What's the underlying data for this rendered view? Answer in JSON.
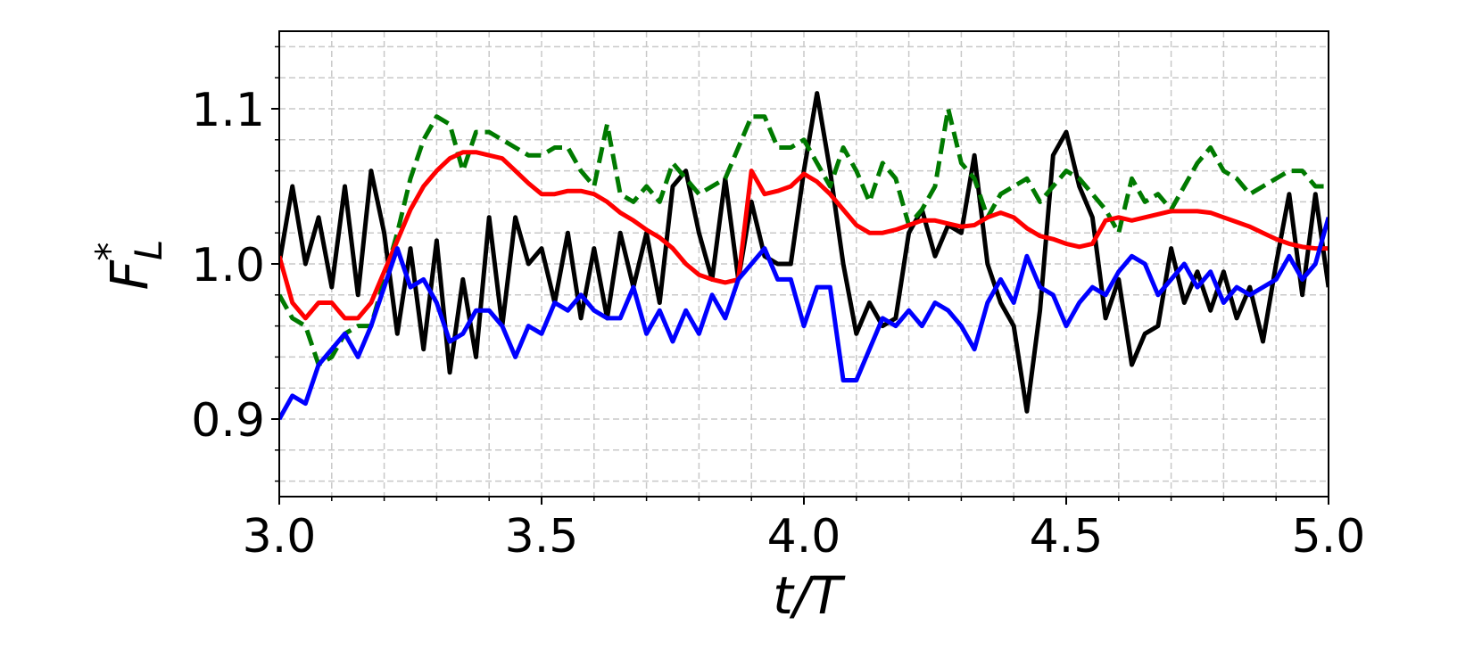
{
  "chart_data": {
    "type": "line",
    "xlabel": "t/T",
    "ylabel": {
      "base": "F",
      "sub": "L",
      "sup": "*"
    },
    "x": [
      3,
      3.025,
      3.05,
      3.075,
      3.1,
      3.125,
      3.15,
      3.175,
      3.2,
      3.225,
      3.25,
      3.275,
      3.3,
      3.325,
      3.35,
      3.375,
      3.4,
      3.425,
      3.45,
      3.475,
      3.5,
      3.525,
      3.55,
      3.575,
      3.6,
      3.625,
      3.65,
      3.675,
      3.7,
      3.725,
      3.75,
      3.775,
      3.8,
      3.825,
      3.85,
      3.875,
      3.9,
      3.925,
      3.95,
      3.975,
      4,
      4.025,
      4.05,
      4.075,
      4.1,
      4.125,
      4.15,
      4.175,
      4.2,
      4.225,
      4.25,
      4.275,
      4.3,
      4.325,
      4.35,
      4.375,
      4.4,
      4.425,
      4.45,
      4.475,
      4.5,
      4.525,
      4.55,
      4.575,
      4.6,
      4.625,
      4.65,
      4.675,
      4.7,
      4.725,
      4.75,
      4.775,
      4.8,
      4.825,
      4.85,
      4.875,
      4.9,
      4.925,
      4.95,
      4.975,
      5
    ],
    "series": [
      {
        "color": "#000000",
        "linestyle": "solid",
        "values": [
          1.0,
          1.05,
          1.0,
          1.03,
          0.985,
          1.05,
          0.98,
          1.06,
          1.02,
          0.955,
          1.01,
          0.945,
          1.015,
          0.93,
          0.99,
          0.94,
          1.03,
          0.96,
          1.03,
          1.0,
          1.01,
          0.975,
          1.02,
          0.965,
          1.01,
          0.965,
          1.02,
          0.985,
          1.02,
          0.975,
          1.05,
          1.06,
          1.02,
          0.99,
          1.055,
          0.99,
          1.04,
          1.005,
          1.0,
          1.0,
          1.06,
          1.11,
          1.06,
          1.0,
          0.955,
          0.975,
          0.96,
          0.965,
          1.02,
          1.035,
          1.005,
          1.025,
          1.02,
          1.07,
          1.0,
          0.975,
          0.96,
          0.905,
          0.97,
          1.07,
          1.085,
          1.05,
          1.03,
          0.965,
          0.99,
          0.935,
          0.955,
          0.96,
          1.01,
          0.975,
          0.995,
          0.97,
          0.995,
          0.965,
          0.985,
          0.95,
          1.0,
          1.045,
          0.98,
          1.045,
          0.985
        ]
      },
      {
        "color": "#007a00",
        "linestyle": "dashed",
        "values": [
          0.98,
          0.965,
          0.96,
          0.935,
          0.94,
          0.955,
          0.96,
          0.96,
          0.99,
          1.02,
          1.055,
          1.08,
          1.095,
          1.09,
          1.06,
          1.085,
          1.085,
          1.08,
          1.075,
          1.07,
          1.07,
          1.075,
          1.075,
          1.06,
          1.05,
          1.09,
          1.045,
          1.04,
          1.05,
          1.04,
          1.065,
          1.055,
          1.045,
          1.05,
          1.055,
          1.075,
          1.095,
          1.095,
          1.075,
          1.075,
          1.08,
          1.065,
          1.05,
          1.075,
          1.06,
          1.04,
          1.065,
          1.055,
          1.025,
          1.035,
          1.05,
          1.1,
          1.065,
          1.055,
          1.03,
          1.045,
          1.05,
          1.055,
          1.04,
          1.05,
          1.06,
          1.055,
          1.045,
          1.035,
          1.02,
          1.055,
          1.04,
          1.045,
          1.035,
          1.05,
          1.065,
          1.075,
          1.06,
          1.055,
          1.045,
          1.05,
          1.055,
          1.06,
          1.06,
          1.05,
          1.05
        ]
      },
      {
        "color": "#ff0000",
        "linestyle": "solid",
        "values": [
          1.005,
          0.975,
          0.965,
          0.975,
          0.975,
          0.965,
          0.965,
          0.975,
          0.995,
          1.015,
          1.035,
          1.05,
          1.06,
          1.068,
          1.072,
          1.072,
          1.07,
          1.068,
          1.06,
          1.052,
          1.045,
          1.045,
          1.047,
          1.047,
          1.045,
          1.04,
          1.033,
          1.028,
          1.022,
          1.017,
          1.01,
          1.0,
          0.993,
          0.99,
          0.988,
          0.99,
          1.06,
          1.045,
          1.047,
          1.05,
          1.058,
          1.053,
          1.045,
          1.035,
          1.025,
          1.02,
          1.02,
          1.022,
          1.025,
          1.028,
          1.028,
          1.026,
          1.024,
          1.025,
          1.03,
          1.033,
          1.03,
          1.023,
          1.018,
          1.016,
          1.013,
          1.011,
          1.013,
          1.028,
          1.03,
          1.028,
          1.03,
          1.032,
          1.034,
          1.034,
          1.034,
          1.033,
          1.03,
          1.027,
          1.024,
          1.02,
          1.016,
          1.013,
          1.011,
          1.01,
          1.01
        ]
      },
      {
        "color": "#0000ff",
        "linestyle": "solid",
        "values": [
          0.9,
          0.915,
          0.91,
          0.935,
          0.945,
          0.955,
          0.94,
          0.96,
          0.985,
          1.01,
          0.985,
          0.99,
          0.975,
          0.95,
          0.955,
          0.97,
          0.97,
          0.96,
          0.94,
          0.96,
          0.955,
          0.975,
          0.97,
          0.98,
          0.97,
          0.965,
          0.965,
          0.985,
          0.955,
          0.97,
          0.95,
          0.97,
          0.955,
          0.98,
          0.965,
          0.99,
          1.0,
          1.01,
          0.99,
          0.99,
          0.96,
          0.985,
          0.985,
          0.925,
          0.925,
          0.945,
          0.965,
          0.96,
          0.97,
          0.96,
          0.975,
          0.97,
          0.96,
          0.945,
          0.975,
          0.99,
          0.975,
          1.005,
          0.985,
          0.98,
          0.96,
          0.975,
          0.985,
          0.98,
          0.995,
          1.005,
          1.0,
          0.98,
          0.99,
          1.0,
          0.985,
          0.995,
          0.975,
          0.985,
          0.98,
          0.985,
          0.99,
          1.005,
          0.99,
          1.0,
          1.03
        ]
      }
    ],
    "xlim": [
      3,
      5
    ],
    "ylim": [
      0.85,
      1.15
    ],
    "xticks": [
      {
        "value": 3,
        "label": "3.0"
      },
      3.5,
      {
        "value": 4,
        "label": "4.0"
      },
      4.5,
      {
        "value": 5,
        "label": "5.0"
      }
    ],
    "yticks": [
      0.9,
      {
        "value": 1,
        "label": "1.0"
      },
      1.1
    ],
    "xticks_minor": [
      3.1,
      3.2,
      3.3,
      3.4,
      3.6,
      3.7,
      3.8,
      3.9,
      4.1,
      4.2,
      4.3,
      4.4,
      4.6,
      4.7,
      4.8,
      4.9
    ],
    "yticks_minor": [
      0.86,
      0.88,
      0.92,
      0.94,
      0.96,
      0.98,
      1.02,
      1.04,
      1.06,
      1.08,
      1.12,
      1.14
    ],
    "grid": true
  }
}
